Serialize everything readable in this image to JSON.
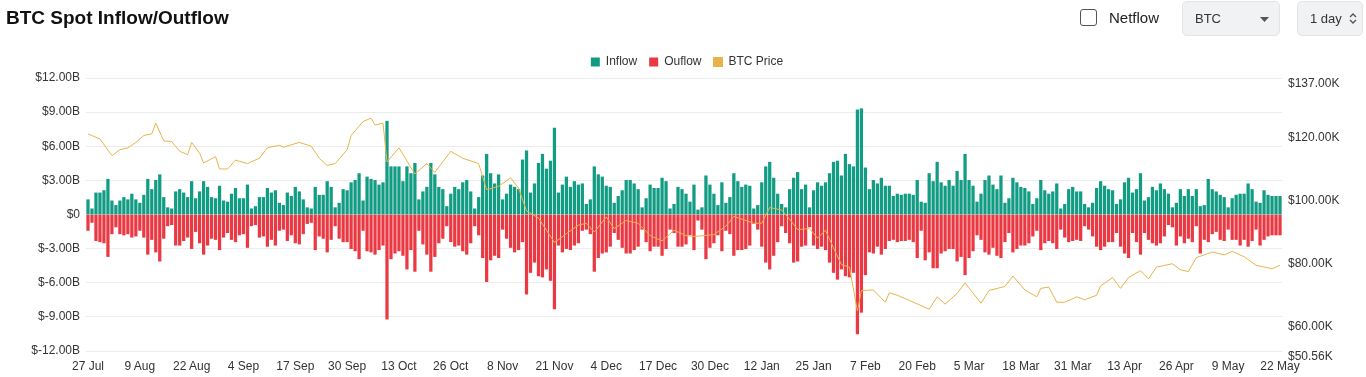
{
  "chart_data": {
    "type": "bar",
    "title": "BTC Spot Inflow/Outflow",
    "annotations": [
      "Netflow",
      "BTC",
      "1 day"
    ],
    "categories": [
      "27 Jul",
      null,
      null,
      null,
      null,
      null,
      null,
      null,
      null,
      null,
      null,
      null,
      null,
      "9 Aug",
      null,
      null,
      null,
      null,
      null,
      null,
      null,
      null,
      null,
      null,
      null,
      null,
      "22 Aug",
      null,
      null,
      null,
      null,
      null,
      null,
      null,
      null,
      null,
      null,
      null,
      null,
      "4 Sep",
      null,
      null,
      null,
      null,
      null,
      null,
      null,
      null,
      null,
      null,
      null,
      null,
      "17 Sep",
      null,
      null,
      null,
      null,
      null,
      null,
      null,
      null,
      null,
      null,
      null,
      null,
      "30 Sep",
      null,
      null,
      null,
      null,
      null,
      null,
      null,
      null,
      null,
      null,
      null,
      null,
      "13 Oct",
      null,
      null,
      null,
      null,
      null,
      null,
      null,
      null,
      null,
      null,
      null,
      null,
      "26 Oct",
      null,
      null,
      null,
      null,
      null,
      null,
      null,
      null,
      null,
      null,
      null,
      null,
      "8 Nov",
      null,
      null,
      null,
      null,
      null,
      null,
      null,
      null,
      null,
      null,
      null,
      null,
      "21 Nov",
      null,
      null,
      null,
      null,
      null,
      null,
      null,
      null,
      null,
      null,
      null,
      null,
      "4 Dec",
      null,
      null,
      null,
      null,
      null,
      null,
      null,
      null,
      null,
      null,
      null,
      null,
      "17 Dec",
      null,
      null,
      null,
      null,
      null,
      null,
      null,
      null,
      null,
      null,
      null,
      null,
      "30 Dec",
      null,
      null,
      null,
      null,
      null,
      null,
      null,
      null,
      null,
      null,
      null,
      null,
      "12 Jan",
      null,
      null,
      null,
      null,
      null,
      null,
      null,
      null,
      null,
      null,
      null,
      null,
      "25 Jan",
      null,
      null,
      null,
      null,
      null,
      null,
      null,
      null,
      null,
      null,
      null,
      null,
      "7 Feb",
      null,
      null,
      null,
      null,
      null,
      null,
      null,
      null,
      null,
      null,
      null,
      null,
      "20 Feb",
      null,
      null,
      null,
      null,
      null,
      null,
      null,
      null,
      null,
      null,
      null,
      null,
      "5 Mar",
      null,
      null,
      null,
      null,
      null,
      null,
      null,
      null,
      null,
      null,
      null,
      null,
      "18 Mar",
      null,
      null,
      null,
      null,
      null,
      null,
      null,
      null,
      null,
      null,
      null,
      null,
      "31 Mar",
      null,
      null,
      null,
      null,
      null,
      null,
      null,
      null,
      null,
      null,
      null,
      null,
      "13 Apr",
      null,
      null,
      null,
      null,
      null,
      null,
      null,
      null,
      null,
      null,
      null,
      null,
      "26 Apr",
      null,
      null,
      null,
      null,
      null,
      null,
      null,
      null,
      null,
      null,
      null,
      null,
      "9 May",
      null,
      null,
      null,
      null,
      null,
      null,
      null,
      null,
      null,
      null,
      null,
      null,
      "22 May"
    ],
    "series": [
      {
        "name": "Inflow",
        "color": "#119c83",
        "values": [
          1.3,
          0.5,
          1.9,
          1.9,
          2.1,
          3.1,
          1.2,
          0.8,
          1.2,
          1.5,
          1.3,
          1.8,
          1.3,
          1.0,
          1.7,
          3.1,
          2.2,
          3.0,
          3.5,
          1.5,
          0.6,
          0.5,
          2.0,
          2.2,
          1.9,
          1.5,
          2.9,
          1.4,
          2.0,
          2.9,
          2.4,
          1.5,
          1.4,
          2.5,
          1.2,
          1.1,
          1.8,
          2.3,
          1.4,
          1.4,
          2.6,
          0.5,
          0.7,
          1.5,
          1.5,
          2.3,
          1.9,
          2.1,
          1.0,
          0.8,
          1.9,
          1.6,
          2.4,
          2.0,
          1.3,
          0.6,
          0.5,
          2.4,
          1.7,
          1.7,
          2.9,
          2.4,
          0.6,
          1.0,
          2.2,
          2.1,
          2.8,
          3.0,
          3.6,
          1.2,
          3.3,
          3.1,
          3.0,
          2.6,
          2.8,
          8.2,
          4.2,
          4.2,
          4.2,
          2.9,
          4.2,
          3.6,
          4.5,
          1.3,
          2.0,
          2.4,
          4.5,
          3.5,
          2.4,
          2.2,
          0.7,
          1.8,
          2.4,
          2.2,
          2.8,
          3.0,
          2.0,
          0.5,
          1.5,
          3.4,
          5.3,
          3.6,
          2.7,
          3.5,
          1.3,
          1.8,
          2.6,
          2.4,
          2.2,
          4.8,
          5.6,
          1.9,
          2.7,
          4.5,
          5.3,
          4.0,
          4.7,
          7.6,
          1.9,
          2.6,
          3.3,
          2.4,
          2.9,
          2.6,
          2.7,
          0.9,
          1.3,
          4.2,
          3.5,
          3.3,
          2.5,
          2.4,
          1.0,
          1.6,
          2.1,
          3.0,
          3.0,
          2.7,
          2.2,
          0.6,
          1.4,
          2.6,
          2.3,
          2.3,
          3.2,
          2.9,
          0.5,
          0.9,
          2.4,
          2.2,
          1.8,
          1.1,
          2.6,
          0.4,
          0.6,
          3.4,
          2.6,
          1.8,
          0.8,
          2.8,
          1.0,
          1.5,
          3.6,
          2.9,
          2.4,
          2.6,
          2.5,
          0.5,
          0.8,
          2.8,
          4.2,
          4.6,
          3.2,
          1.8,
          0.9,
          0.6,
          2.2,
          3.2,
          3.7,
          2.2,
          2.6,
          0.6,
          2.1,
          2.8,
          2.5,
          2.8,
          3.6,
          4.6,
          4.7,
          3.4,
          5.3,
          4.4,
          4.2,
          9.2,
          9.3,
          4.1,
          2.2,
          3.0,
          2.7,
          3.2,
          2.5,
          2.5,
          1.6,
          1.8,
          1.7,
          1.8,
          1.8,
          1.7,
          3.0,
          1.1,
          1.0,
          3.6,
          2.9,
          4.6,
          2.8,
          2.5,
          3.0,
          2.5,
          3.8,
          3.0,
          5.3,
          3.0,
          2.5,
          1.1,
          1.8,
          3.0,
          3.4,
          2.6,
          2.2,
          3.4,
          1.0,
          1.4,
          3.2,
          2.8,
          2.4,
          2.3,
          2.0,
          0.9,
          1.4,
          3.0,
          2.1,
          1.8,
          2.0,
          2.7,
          0.5,
          0.9,
          2.2,
          2.4,
          2.0,
          2.0,
          0.9,
          0.6,
          1.0,
          2.3,
          2.9,
          2.5,
          2.2,
          2.1,
          0.9,
          1.3,
          2.8,
          3.2,
          1.9,
          2.2,
          3.6,
          1.2,
          1.5,
          2.4,
          2.1,
          2.7,
          2.2,
          1.8,
          0.6,
          1.0,
          2.2,
          1.6,
          2.2,
          1.6,
          2.2,
          0.7,
          0.8,
          3.1,
          2.2,
          2.0,
          1.7,
          1.5,
          0.6,
          1.4,
          1.7,
          1.8,
          1.8,
          2.7,
          2.2,
          1.1,
          1.0,
          2.1,
          1.7,
          1.6,
          1.6,
          1.6
        ]
      },
      {
        "name": "Ouflow",
        "color": "#ea3943",
        "values": [
          -1.4,
          -0.7,
          -2.3,
          -2.4,
          -2.5,
          -3.7,
          -1.7,
          -1.1,
          -1.7,
          -1.8,
          -1.7,
          -2.0,
          -1.9,
          -1.4,
          -2.0,
          -3.5,
          -2.2,
          -3.3,
          -4.1,
          -2.1,
          -1.0,
          -0.9,
          -2.7,
          -2.7,
          -2.3,
          -2.0,
          -3.0,
          -1.5,
          -2.5,
          -3.5,
          -2.7,
          -2.1,
          -2.2,
          -3.1,
          -2.0,
          -1.6,
          -2.2,
          -2.4,
          -1.8,
          -1.7,
          -2.9,
          -1.0,
          -0.9,
          -2.0,
          -1.9,
          -2.8,
          -2.2,
          -2.7,
          -1.4,
          -1.3,
          -2.3,
          -1.8,
          -2.5,
          -2.6,
          -1.7,
          -0.8,
          -0.7,
          -3.1,
          -1.9,
          -2.1,
          -3.3,
          -2.2,
          -1.0,
          -2.1,
          -2.4,
          -2.4,
          -3.0,
          -3.2,
          -3.9,
          -1.4,
          -3.2,
          -3.3,
          -3.5,
          -3.1,
          -2.7,
          -9.2,
          -3.9,
          -3.4,
          -3.2,
          -3.6,
          -4.8,
          -3.1,
          -5.0,
          -1.4,
          -2.6,
          -3.5,
          -5.0,
          -3.7,
          -2.5,
          -2.1,
          -1.0,
          -2.4,
          -2.8,
          -2.7,
          -3.2,
          -3.5,
          -2.5,
          -1.0,
          -1.8,
          -3.8,
          -5.9,
          -4.0,
          -3.6,
          -3.8,
          -1.3,
          -2.1,
          -2.9,
          -3.3,
          -3.1,
          -2.4,
          -7.0,
          -5.1,
          -4.2,
          -5.4,
          -5.5,
          -4.8,
          -5.8,
          -8.3,
          -2.7,
          -3.3,
          -3.0,
          -3.1,
          -2.7,
          -2.5,
          -1.4,
          -1.3,
          -1.7,
          -5.0,
          -3.8,
          -3.4,
          -3.3,
          -2.8,
          -1.6,
          -2.2,
          -2.9,
          -3.4,
          -3.4,
          -3.1,
          -2.8,
          -1.3,
          -2.4,
          -3.2,
          -2.8,
          -2.8,
          -3.6,
          -3.0,
          -1.3,
          -1.6,
          -2.8,
          -2.8,
          -2.6,
          -1.8,
          -3.1,
          -0.5,
          -1.3,
          -3.9,
          -2.9,
          -2.5,
          -1.8,
          -3.2,
          -1.4,
          -1.7,
          -3.6,
          -3.1,
          -3.1,
          -3.0,
          -2.7,
          -0.8,
          -1.3,
          -2.8,
          -4.2,
          -4.8,
          -3.6,
          -2.4,
          -1.0,
          -1.6,
          -2.5,
          -4.2,
          -4.1,
          -2.8,
          -2.7,
          -1.1,
          -2.7,
          -3.0,
          -2.8,
          -3.1,
          -4.2,
          -5.1,
          -5.7,
          -4.8,
          -5.4,
          -5.5,
          -5.1,
          -10.5,
          -8.6,
          -5.3,
          -3.3,
          -3.4,
          -2.8,
          -3.5,
          -3.0,
          -2.3,
          -2.2,
          -2.4,
          -2.3,
          -2.3,
          -2.2,
          -2.4,
          -3.8,
          -1.4,
          -4.0,
          -3.3,
          -4.7,
          -4.7,
          -3.4,
          -3.2,
          -3.0,
          -3.0,
          -4.1,
          -3.7,
          -5.3,
          -3.8,
          -3.2,
          -1.8,
          -2.2,
          -3.3,
          -3.5,
          -2.9,
          -3.6,
          -3.8,
          -2.4,
          -1.6,
          -3.3,
          -3.0,
          -2.7,
          -2.7,
          -2.5,
          -1.9,
          -1.4,
          -3.1,
          -2.5,
          -2.3,
          -2.5,
          -3.0,
          -1.3,
          -2.0,
          -2.4,
          -2.3,
          -2.2,
          -2.3,
          -1.0,
          -1.3,
          -1.9,
          -2.8,
          -3.1,
          -2.8,
          -2.4,
          -2.4,
          -1.6,
          -2.8,
          -3.4,
          -3.8,
          -1.6,
          -2.4,
          -3.5,
          -1.6,
          -2.2,
          -2.5,
          -2.7,
          -2.5,
          -1.9,
          -0.9,
          -1.1,
          -2.7,
          -1.9,
          -2.5,
          -2.1,
          -2.4,
          -1.0,
          -3.4,
          -2.2,
          -2.4,
          -1.7,
          -1.5,
          -2.2,
          -2.3,
          -1.3,
          -2.2,
          -2.2,
          -2.7,
          -2.2,
          -2.8,
          -2.3,
          -1.3,
          -2.7,
          -2.2,
          -1.9,
          -1.8,
          -1.8,
          -1.8
        ]
      },
      {
        "name": "BTC Price",
        "type": "line",
        "axis": "y2",
        "color": "#e8b44a",
        "values": [
          119.3,
          null,
          null,
          117.7,
          null,
          null,
          112.4,
          null,
          114.3,
          null,
          114.9,
          null,
          116.6,
          null,
          118.8,
          null,
          119.3,
          122.7,
          null,
          117.1,
          null,
          116.9,
          null,
          113.8,
          null,
          112.7,
          116.6,
          null,
          113.2,
          110.1,
          null,
          null,
          112.1,
          108.2,
          null,
          108.2,
          null,
          111,
          null,
          null,
          109.9,
          null,
          null,
          111.6,
          null,
          114.9,
          null,
          null,
          115.7,
          115.1,
          null,
          null,
          null,
          116.6,
          null,
          null,
          115.4,
          null,
          111.6,
          null,
          109.3,
          null,
          109.9,
          null,
          null,
          114.3,
          118.8,
          null,
          null,
          123.2,
          null,
          124.3,
          122.1,
          null,
          122.7,
          110.4,
          null,
          null,
          114.9,
          null,
          null,
          null,
          106.6,
          null,
          null,
          109.9,
          null,
          107.1,
          null,
          null,
          null,
          113.8,
          null,
          null,
          111.6,
          null,
          null,
          null,
          109.9,
          null,
          101.6,
          null,
          null,
          102.7,
          null,
          null,
          105.4,
          null,
          102.1,
          null,
          94.9,
          null,
          null,
          92.7,
          null,
          null,
          null,
          84.9,
          null,
          null,
          87.7,
          null,
          null,
          90.4,
          null,
          91,
          null,
          88.2,
          null,
          null,
          93,
          null,
          89.3,
          null,
          null,
          91.9,
          null,
          null,
          91,
          null,
          null,
          87.1,
          null,
          null,
          85.4,
          null,
          null,
          88.8,
          null,
          null,
          87.1,
          null,
          86.8,
          null,
          null,
          null,
          null,
          87.4,
          null,
          null,
          90.1,
          null,
          93.2,
          null,
          null,
          null,
          null,
          91,
          null,
          91,
          null,
          96,
          null,
          null,
          95.2,
          null,
          92.3,
          null,
          89,
          null,
          null,
          89.3,
          null,
          86.3,
          null,
          88.8,
          null,
          83.2,
          null,
          77.9,
          null,
          77.1,
          null,
          63.2,
          69.7,
          null,
          null,
          69.9,
          null,
          null,
          66,
          69,
          null,
          68.2,
          null,
          null,
          66.6,
          null,
          null,
          null,
          null,
          63.8,
          null,
          67.7,
          null,
          65.4,
          null,
          null,
          68.8,
          null,
          72.1,
          null,
          null,
          null,
          65.7,
          null,
          69.7,
          null,
          null,
          null,
          71,
          null,
          74.3,
          null,
          null,
          69.9,
          null,
          null,
          67.7,
          70.4,
          null,
          70.8,
          null,
          66,
          null,
          66,
          null,
          null,
          67.7,
          null,
          66.8,
          null,
          null,
          68.2,
          71.2,
          null,
          null,
          73.8,
          null,
          70.4,
          null,
          73.8,
          null,
          null,
          76,
          null,
          73.4,
          null,
          77.1,
          null,
          null,
          null,
          78.2,
          null,
          76.3,
          null,
          75.7,
          null,
          80.1,
          null,
          null,
          null,
          81.9,
          null,
          null,
          81,
          null,
          82.1,
          null,
          null,
          80.4,
          null,
          null,
          77.7,
          null,
          null,
          null,
          76.6,
          null,
          77.7
        ]
      }
    ],
    "ylim": [
      -12,
      12
    ],
    "yticks": [
      {
        "value": -12,
        "label": "$-12.00B"
      },
      {
        "value": -9,
        "label": "$-9.00B"
      },
      {
        "value": -6,
        "label": "$-6.00B"
      },
      {
        "value": -3,
        "label": "$-3.00B"
      },
      {
        "value": 0,
        "label": "$0"
      },
      {
        "value": 3,
        "label": "$3.00B"
      },
      {
        "value": 6,
        "label": "$6.00B"
      },
      {
        "value": 9,
        "label": "$9.00B"
      },
      {
        "value": 12,
        "label": "$12.00B"
      }
    ],
    "y2lim": [
      50.56,
      137
    ],
    "y2ticks": [
      {
        "value": 50.56,
        "label": "$50.56K"
      },
      {
        "value": 60,
        "label": "$60.00K"
      },
      {
        "value": 80,
        "label": "$80.00K"
      },
      {
        "value": 100,
        "label": "$100.00K"
      },
      {
        "value": 120,
        "label": "$120.00K"
      },
      {
        "value": 137,
        "label": "$137.00K"
      }
    ],
    "stacked": true,
    "grid": "y",
    "legend": "top"
  }
}
